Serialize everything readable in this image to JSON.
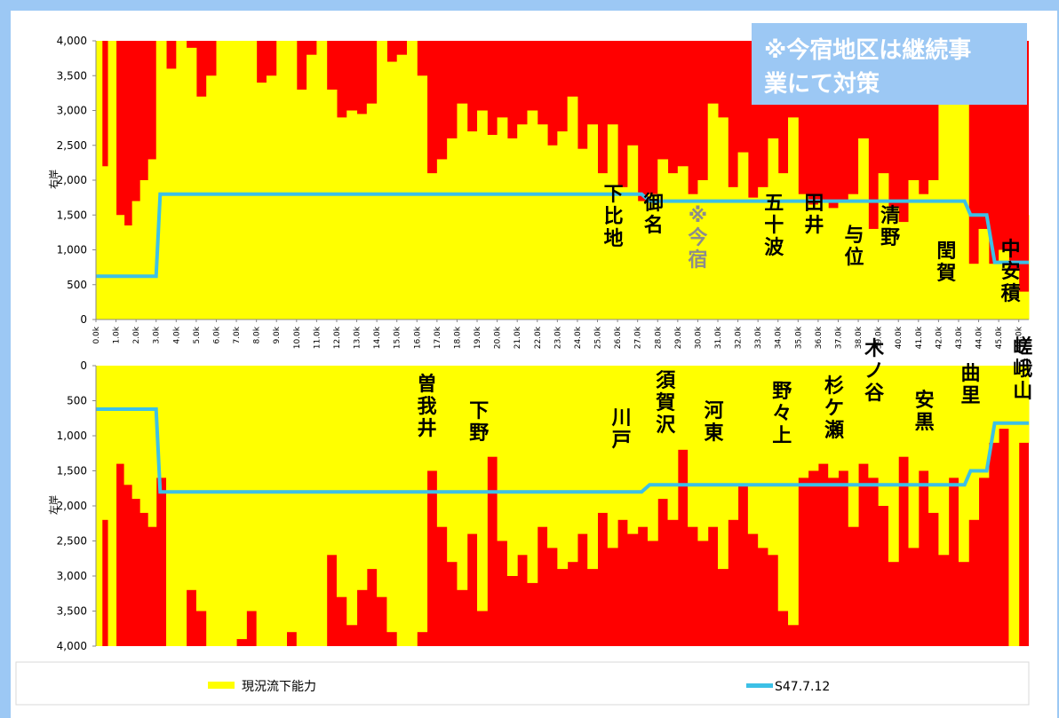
{
  "chart_data": [
    {
      "type": "area",
      "panel": "right_bank",
      "ylabel": "右岸",
      "ylim": [
        0,
        4000
      ],
      "yticks": [
        "4,000",
        "3,500",
        "3,000",
        "2,500",
        "2,000",
        "1,500",
        "1,000",
        "500",
        "0"
      ],
      "xticks": [
        "0.0k",
        "1.0k",
        "2.0k",
        "3.0k",
        "4.0k",
        "5.0k",
        "6.0k",
        "7.0k",
        "8.0k",
        "9.0k",
        "10.0k",
        "11.0k",
        "12.0k",
        "13.0k",
        "14.0k",
        "15.0k",
        "16.0k",
        "17.0k",
        "18.0k",
        "19.0k",
        "20.0k",
        "21.0k",
        "22.0k",
        "23.0k",
        "24.0k",
        "25.0k",
        "26.0k",
        "27.0k",
        "28.0k",
        "29.0k",
        "30.0k",
        "31.0k",
        "32.0k",
        "33.0k",
        "34.0k",
        "35.0k",
        "36.0k",
        "37.0k",
        "38.0k",
        "39.0k",
        "40.0k",
        "41.0k",
        "42.0k",
        "43.0k",
        "44.0k",
        "45.0k",
        "46.0k"
      ],
      "series": [
        {
          "name": "現況流下能力",
          "color": "#ffff00",
          "x": [
            0,
            0.3,
            0.6,
            1,
            1.4,
            1.8,
            2.2,
            2.6,
            3,
            3.5,
            4,
            4.5,
            5,
            5.5,
            6,
            6.5,
            7,
            7.5,
            8,
            8.5,
            9,
            9.5,
            10,
            10.5,
            11,
            11.5,
            12,
            12.5,
            13,
            13.5,
            14,
            14.5,
            15,
            15.5,
            16,
            16.5,
            17,
            17.5,
            18,
            18.5,
            19,
            19.5,
            20,
            20.5,
            21,
            21.5,
            22,
            22.5,
            23,
            23.5,
            24,
            24.5,
            25,
            25.5,
            26,
            26.5,
            27,
            27.5,
            28,
            28.5,
            29,
            29.5,
            30,
            30.5,
            31,
            31.5,
            32,
            32.5,
            33,
            33.5,
            34,
            34.5,
            35,
            35.5,
            36,
            36.5,
            37,
            37.5,
            38,
            38.5,
            39,
            39.5,
            40,
            40.5,
            41,
            41.5,
            42,
            42.5,
            43,
            43.5,
            44,
            44.5,
            45,
            45.5,
            46,
            46.5
          ],
          "values": [
            4000,
            2200,
            4000,
            1500,
            1350,
            1700,
            2000,
            2300,
            4000,
            3600,
            4000,
            3900,
            3200,
            3500,
            4000,
            4000,
            4000,
            4000,
            3400,
            3500,
            4000,
            4000,
            3300,
            3800,
            4000,
            3300,
            2900,
            3000,
            2950,
            3100,
            4000,
            3700,
            3800,
            4000,
            3500,
            2100,
            2300,
            2600,
            3100,
            2700,
            3000,
            2650,
            2900,
            2600,
            2800,
            3000,
            2800,
            2500,
            2700,
            3200,
            2450,
            2800,
            2100,
            2800,
            1900,
            2500,
            1700,
            1800,
            2300,
            2100,
            2200,
            1800,
            2000,
            3100,
            2900,
            1900,
            2400,
            1750,
            1900,
            2600,
            2100,
            2900,
            1800,
            1650,
            1700,
            1600,
            1700,
            1800,
            2600,
            1300,
            2100,
            1600,
            1400,
            2000,
            1800,
            2000,
            4000,
            4000,
            4000,
            800,
            1300,
            800,
            1000,
            700,
            400,
            1500
          ]
        },
        {
          "name": "S47.7.12",
          "color": "#3cc0e6",
          "x": [
            0,
            3,
            3.2,
            27.2,
            27.6,
            43.3,
            43.6,
            44.4,
            44.8,
            46.5
          ],
          "values": [
            620,
            620,
            1800,
            1800,
            1700,
            1700,
            1500,
            1500,
            820,
            820
          ]
        }
      ],
      "place_labels": [
        {
          "text": "下比地",
          "km": 25.8
        },
        {
          "text": "御名",
          "km": 27.8
        },
        {
          "text": "※今宿",
          "km": 30.0,
          "color": "#8c8c8c"
        },
        {
          "text": "五十波",
          "km": 33.8
        },
        {
          "text": "田井",
          "km": 35.8
        },
        {
          "text": "与位",
          "km": 37.8
        },
        {
          "text": "清野",
          "km": 39.6
        },
        {
          "text": "閏賀",
          "km": 42.4
        },
        {
          "text": "中安積",
          "km": 45.6
        }
      ]
    },
    {
      "type": "area",
      "panel": "left_bank",
      "ylabel": "左岸",
      "ylim": [
        4000,
        0
      ],
      "yticks": [
        "0",
        "500",
        "1,000",
        "1,500",
        "2,000",
        "2,500",
        "3,000",
        "3,500",
        "4,000"
      ],
      "series": [
        {
          "name": "現況流下能力",
          "color": "#ffff00",
          "x": [
            0,
            0.3,
            0.6,
            1,
            1.4,
            1.8,
            2.2,
            2.6,
            3,
            3.5,
            4,
            4.5,
            5,
            5.5,
            6,
            6.5,
            7,
            7.5,
            8,
            8.5,
            9,
            9.5,
            10,
            10.5,
            11,
            11.5,
            12,
            12.5,
            13,
            13.5,
            14,
            14.5,
            15,
            15.5,
            16,
            16.5,
            17,
            17.5,
            18,
            18.5,
            19,
            19.5,
            20,
            20.5,
            21,
            21.5,
            22,
            22.5,
            23,
            23.5,
            24,
            24.5,
            25,
            25.5,
            26,
            26.5,
            27,
            27.5,
            28,
            28.5,
            29,
            29.5,
            30,
            30.5,
            31,
            31.5,
            32,
            32.5,
            33,
            33.5,
            34,
            34.5,
            35,
            35.5,
            36,
            36.5,
            37,
            37.5,
            38,
            38.5,
            39,
            39.5,
            40,
            40.5,
            41,
            41.5,
            42,
            42.5,
            43,
            43.5,
            44,
            44.5,
            45,
            45.5,
            46,
            46.5
          ],
          "values": [
            4000,
            2200,
            4000,
            1400,
            1700,
            1900,
            2100,
            2300,
            1600,
            4000,
            4000,
            3200,
            3500,
            4000,
            4000,
            4000,
            3900,
            3500,
            4000,
            4000,
            4000,
            3800,
            4000,
            4000,
            4000,
            2700,
            3300,
            3700,
            3200,
            2900,
            3300,
            3800,
            4000,
            4000,
            3800,
            1500,
            2300,
            2800,
            3200,
            2400,
            3500,
            1300,
            2500,
            3000,
            2700,
            3100,
            2300,
            2600,
            2900,
            2800,
            2400,
            2900,
            2100,
            2600,
            2200,
            2400,
            2300,
            2500,
            1900,
            2200,
            1200,
            2300,
            2500,
            2300,
            2900,
            2200,
            1700,
            2400,
            2600,
            2700,
            3500,
            3700,
            1600,
            1500,
            1400,
            1600,
            1500,
            2300,
            1400,
            1600,
            2000,
            2800,
            1300,
            2600,
            1500,
            2100,
            2700,
            1600,
            2800,
            2200,
            1600,
            1100,
            900,
            4000,
            1100,
            800
          ]
        },
        {
          "name": "S47.7.12",
          "color": "#3cc0e6",
          "x": [
            0,
            3,
            3.2,
            27.2,
            27.6,
            43.3,
            43.6,
            44.4,
            44.8,
            46.5
          ],
          "values": [
            620,
            620,
            1800,
            1800,
            1700,
            1700,
            1500,
            1500,
            820,
            820
          ]
        }
      ],
      "place_labels": [
        {
          "text": "曽我井",
          "km": 16.5
        },
        {
          "text": "下野",
          "km": 19.1
        },
        {
          "text": "川戸",
          "km": 26.2
        },
        {
          "text": "須賀沢",
          "km": 28.4
        },
        {
          "text": "河東",
          "km": 30.8
        },
        {
          "text": "野々上",
          "km": 34.2
        },
        {
          "text": "杉ケ瀬",
          "km": 36.8
        },
        {
          "text": "木ノ谷",
          "km": 38.8
        },
        {
          "text": "安黒",
          "km": 41.3
        },
        {
          "text": "曲里",
          "km": 43.6
        },
        {
          "text": "嵯峨山",
          "km": 46.2
        }
      ]
    }
  ],
  "colors": {
    "deficit": "#ff0000",
    "capacity": "#ffff00",
    "plan_line": "#3cc0e6",
    "note_bg": "#9cc8f4",
    "note_text": "#ffffff",
    "background": "#9cc8f4"
  },
  "note": {
    "line1": "※今宿地区は継続事",
    "line2": "業にて対策"
  },
  "legend": {
    "capacity": "現況流下能力",
    "plan": "S47.7.12"
  }
}
